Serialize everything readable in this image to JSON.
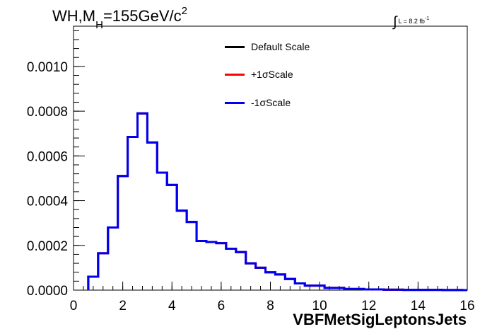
{
  "header": {
    "title_prefix": "WH,M",
    "title_sub": "H",
    "title_value": "=155GeV/c",
    "title_sup": "2",
    "lumi_text": "L = 8.2 fb",
    "lumi_sup": "-1"
  },
  "legend": [
    {
      "label": "Default Scale",
      "color": "#000000"
    },
    {
      "label": "+1σScale",
      "color": "#ff0000"
    },
    {
      "label": "-1σScale",
      "color": "#0000ee"
    }
  ],
  "chart_data": {
    "type": "line",
    "xlabel": "VBFMetSigLeptonsJets",
    "ylabel": "",
    "xlim": [
      0,
      16
    ],
    "ylim": [
      0,
      0.00118
    ],
    "xticks": [
      0,
      2,
      4,
      6,
      8,
      10,
      12,
      14,
      16
    ],
    "yticks": [
      0.0,
      0.0002,
      0.0004,
      0.0006,
      0.0008,
      0.001
    ],
    "ytick_labels": [
      "0.0000",
      "0.0002",
      "0.0004",
      "0.0006",
      "0.0008",
      "0.0010"
    ],
    "bin_edges": [
      0.6,
      0.8,
      1.0,
      1.2,
      1.4,
      1.6,
      1.8,
      2.0,
      2.2,
      2.4,
      2.6,
      2.8,
      3.0,
      3.2,
      3.4,
      3.6,
      3.8,
      4.0,
      4.2,
      4.4,
      4.6,
      4.8,
      5.0,
      5.2,
      5.4,
      5.6,
      5.8,
      6.0,
      6.2,
      6.4,
      6.6,
      6.8,
      7.0,
      7.2,
      7.4,
      7.6,
      7.8,
      8.0,
      8.2,
      8.4,
      8.6,
      8.8,
      9.0,
      9.2,
      9.4,
      9.6,
      9.8,
      10.0,
      10.2,
      10.4,
      10.6,
      10.8,
      11.0,
      11.2,
      11.4,
      11.6,
      11.8,
      12.0,
      12.2,
      12.4,
      12.6,
      12.8,
      13.0,
      13.2,
      13.4,
      13.6,
      13.8,
      14.0,
      14.2,
      14.4,
      14.6,
      14.8,
      15.0,
      15.2,
      15.4,
      15.6,
      15.8,
      16.0
    ],
    "series": [
      {
        "name": "Default Scale",
        "color": "#000000",
        "values": [
          6e-05,
          6e-05,
          0.000165,
          0.000165,
          0.00028,
          0.00028,
          0.00051,
          0.00051,
          0.000685,
          0.000685,
          0.00079,
          0.00079,
          0.00066,
          0.00066,
          0.000525,
          0.000525,
          0.00047,
          0.00047,
          0.000355,
          0.000355,
          0.000305,
          0.000305,
          0.00022,
          0.00022,
          0.000215,
          0.000215,
          0.00021,
          0.00021,
          0.000185,
          0.000185,
          0.00017,
          0.00017,
          0.00012,
          0.00012,
          0.0001,
          0.0001,
          8e-05,
          8e-05,
          7e-05,
          7e-05,
          5e-05,
          5e-05,
          3e-05,
          3e-05,
          2e-05,
          2e-05,
          2e-05,
          2e-05,
          1e-05,
          1e-05,
          1e-05,
          1e-05,
          5e-06,
          5e-06,
          5e-06,
          5e-06,
          3e-06,
          3e-06,
          3e-06,
          3e-06,
          2e-06,
          2e-06,
          2e-06,
          2e-06,
          1e-06,
          1e-06,
          1e-06,
          1e-06,
          1e-06,
          1e-06,
          1e-06,
          1e-06,
          5e-07,
          5e-07,
          5e-07,
          5e-07,
          0.0
        ]
      },
      {
        "name": "+1σScale",
        "color": "#ff0000",
        "values": [
          6e-05,
          6e-05,
          0.000165,
          0.000165,
          0.00028,
          0.00028,
          0.00051,
          0.00051,
          0.000685,
          0.000685,
          0.00079,
          0.00079,
          0.00066,
          0.00066,
          0.000525,
          0.000525,
          0.00047,
          0.00047,
          0.000355,
          0.000355,
          0.000305,
          0.000305,
          0.00022,
          0.00022,
          0.000215,
          0.000215,
          0.00021,
          0.00021,
          0.000185,
          0.000185,
          0.00017,
          0.00017,
          0.00012,
          0.00012,
          0.0001,
          0.0001,
          8e-05,
          8e-05,
          7e-05,
          7e-05,
          5e-05,
          5e-05,
          3e-05,
          3e-05,
          2e-05,
          2e-05,
          2e-05,
          2e-05,
          1e-05,
          1e-05,
          1e-05,
          1e-05,
          5e-06,
          5e-06,
          5e-06,
          5e-06,
          3e-06,
          3e-06,
          3e-06,
          3e-06,
          2e-06,
          2e-06,
          2e-06,
          2e-06,
          1e-06,
          1e-06,
          1e-06,
          1e-06,
          1e-06,
          1e-06,
          1e-06,
          1e-06,
          5e-07,
          5e-07,
          5e-07,
          5e-07,
          0.0
        ]
      },
      {
        "name": "-1σScale",
        "color": "#0000ee",
        "values": [
          6e-05,
          6e-05,
          0.000165,
          0.000165,
          0.00028,
          0.00028,
          0.00051,
          0.00051,
          0.000685,
          0.000685,
          0.00079,
          0.00079,
          0.00066,
          0.00066,
          0.000525,
          0.000525,
          0.00047,
          0.00047,
          0.000355,
          0.000355,
          0.000305,
          0.000305,
          0.00022,
          0.00022,
          0.000215,
          0.000215,
          0.00021,
          0.00021,
          0.000185,
          0.000185,
          0.00017,
          0.00017,
          0.00012,
          0.00012,
          0.0001,
          0.0001,
          8e-05,
          8e-05,
          7e-05,
          7e-05,
          5e-05,
          5e-05,
          3e-05,
          3e-05,
          2e-05,
          2e-05,
          2e-05,
          2e-05,
          1e-05,
          1e-05,
          1e-05,
          1e-05,
          5e-06,
          5e-06,
          5e-06,
          5e-06,
          3e-06,
          3e-06,
          3e-06,
          3e-06,
          2e-06,
          2e-06,
          2e-06,
          2e-06,
          1e-06,
          1e-06,
          1e-06,
          1e-06,
          1e-06,
          1e-06,
          1e-06,
          1e-06,
          5e-07,
          5e-07,
          5e-07,
          5e-07,
          0.0
        ]
      }
    ]
  }
}
